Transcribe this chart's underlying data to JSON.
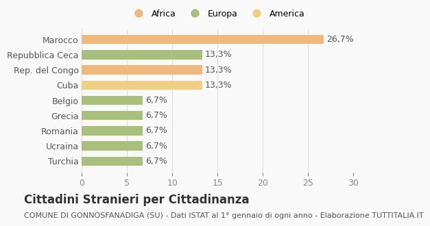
{
  "categories": [
    "Turchia",
    "Ucraina",
    "Romania",
    "Grecia",
    "Belgio",
    "Cuba",
    "Rep. del Congo",
    "Repubblica Ceca",
    "Marocco"
  ],
  "values": [
    6.7,
    6.7,
    6.7,
    6.7,
    6.7,
    13.3,
    13.3,
    13.3,
    26.7
  ],
  "colors": [
    "#a8c07a",
    "#a8c07a",
    "#a8c07a",
    "#a8c07a",
    "#a8c07a",
    "#f0d080",
    "#f0b87a",
    "#a8c07a",
    "#f0b87a"
  ],
  "labels": [
    "6,7%",
    "6,7%",
    "6,7%",
    "6,7%",
    "6,7%",
    "13,3%",
    "13,3%",
    "13,3%",
    "26,7%"
  ],
  "xlim": [
    0,
    30
  ],
  "xticks": [
    0,
    5,
    10,
    15,
    20,
    25,
    30
  ],
  "title": "Cittadini Stranieri per Cittadinanza",
  "subtitle": "COMUNE DI GONNOSFANADIGA (SU) - Dati ISTAT al 1° gennaio di ogni anno - Elaborazione TUTTITALIA.IT",
  "legend": [
    {
      "label": "Africa",
      "color": "#f0b87a"
    },
    {
      "label": "Europa",
      "color": "#a8c07a"
    },
    {
      "label": "America",
      "color": "#f0d080"
    }
  ],
  "bar_height": 0.6,
  "background_color": "#f9f9f9",
  "grid_color": "#dddddd",
  "label_fontsize": 9,
  "title_fontsize": 12,
  "subtitle_fontsize": 8
}
